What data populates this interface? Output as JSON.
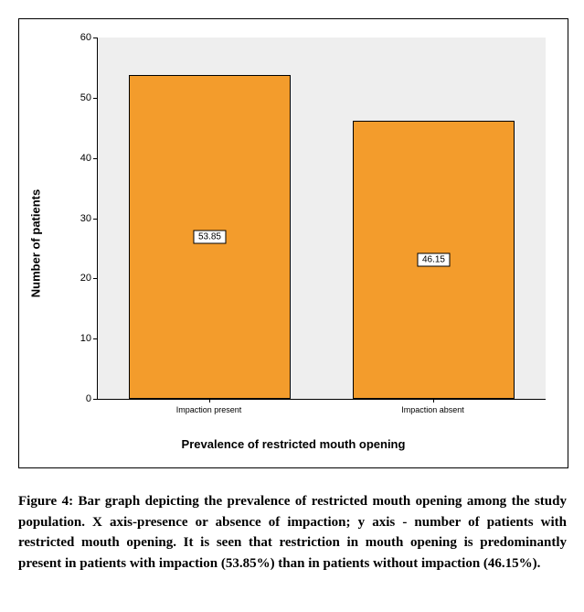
{
  "chart": {
    "type": "bar",
    "ylabel": "Number of patients",
    "xlabel": "Prevalence of restricted mouth opening",
    "ylim": [
      0,
      60
    ],
    "yticks": [
      0,
      10,
      20,
      30,
      40,
      50,
      60
    ],
    "plot_bg": "#eeeeee",
    "bar_color": "#f39c2c",
    "bar_border": "#000000",
    "categories": [
      "Impaction present",
      "Impaction absent"
    ],
    "values": [
      53.85,
      46.15
    ],
    "bar_labels": [
      "53.85",
      "46.15"
    ]
  },
  "caption": {
    "lead": "Figure 4: Bar graph depicting the prevalence of restricted mouth opening among the study population. X axis-presence or absence of impaction; y axis - number of patients with restricted mouth opening. It is seen that restriction in mouth opening is predominantly present in patients with impaction (53.85%) than in patients without impaction (46.15%)."
  }
}
